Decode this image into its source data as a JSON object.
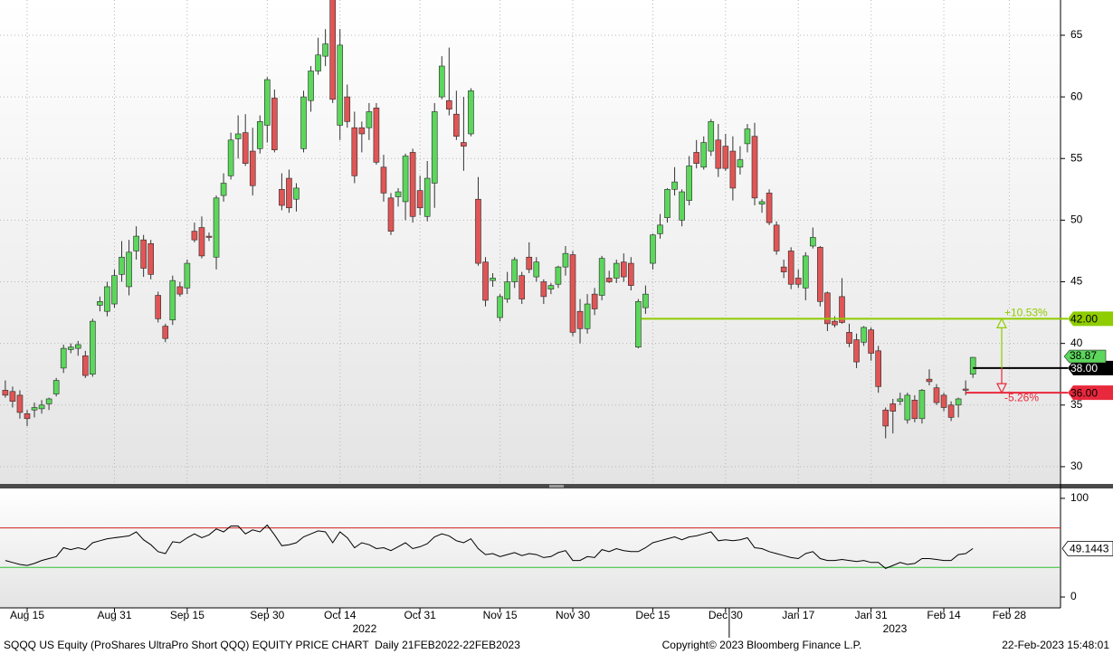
{
  "chart_data": [
    {
      "type": "candlestick",
      "categories": [
        null,
        null,
        null,
        "Aug 15",
        null,
        null,
        null,
        null,
        null,
        null,
        null,
        null,
        null,
        null,
        null,
        "Aug 31",
        null,
        null,
        null,
        null,
        null,
        null,
        null,
        null,
        null,
        "Sep 15",
        null,
        null,
        null,
        null,
        null,
        null,
        null,
        null,
        null,
        null,
        "Sep 30",
        null,
        null,
        null,
        null,
        null,
        null,
        null,
        null,
        null,
        "Oct 14",
        null,
        null,
        null,
        null,
        null,
        null,
        null,
        null,
        null,
        null,
        "Oct 31",
        null,
        null,
        null,
        null,
        null,
        null,
        null,
        null,
        null,
        null,
        "Nov 15",
        null,
        null,
        null,
        null,
        null,
        null,
        null,
        null,
        null,
        "Nov 30",
        null,
        null,
        null,
        null,
        null,
        null,
        null,
        null,
        null,
        null,
        "Dec 15",
        null,
        null,
        null,
        null,
        null,
        null,
        null,
        null,
        null,
        "Dec 30",
        null,
        null,
        null,
        null,
        null,
        null,
        null,
        null,
        null,
        "Jan 17",
        null,
        null,
        null,
        null,
        null,
        null,
        null,
        null,
        null,
        "Jan 31",
        null,
        null,
        null,
        null,
        null,
        null,
        null,
        null,
        null,
        "Feb 14",
        null,
        null,
        null,
        null,
        null,
        null,
        null,
        null,
        "Feb 28"
      ],
      "category_years": [
        "2022",
        null,
        null,
        null,
        null,
        null,
        null,
        null,
        null,
        null,
        null,
        null,
        null,
        null,
        null,
        null,
        null,
        null,
        null,
        null,
        null,
        null,
        null,
        null,
        null,
        null,
        null,
        null,
        null,
        null,
        null,
        null,
        null,
        null,
        null,
        null,
        null,
        null,
        null,
        null,
        null,
        null,
        null,
        null,
        null,
        null,
        null,
        null,
        null,
        null,
        null,
        null,
        null,
        null,
        null,
        null,
        null,
        null,
        null,
        null,
        null,
        null,
        null,
        null,
        null,
        null,
        null,
        null,
        null,
        null,
        null,
        null,
        null,
        null,
        null,
        null,
        null,
        null,
        null,
        null,
        null,
        null,
        null,
        null,
        null,
        null,
        null,
        null,
        null,
        null,
        null,
        null,
        null,
        null,
        null,
        null,
        null,
        null,
        null,
        null,
        "2023",
        null,
        null,
        null,
        null,
        null,
        null,
        null,
        null,
        null,
        null,
        null,
        null,
        null,
        null,
        null,
        null,
        null,
        null,
        null,
        null,
        null,
        null,
        null,
        null,
        null,
        null,
        null,
        null,
        null,
        null,
        null,
        null,
        null,
        null,
        null,
        null,
        null,
        null
      ],
      "open": [
        36.2,
        36.1,
        35.8,
        34.3,
        34.6,
        34.7,
        35.1,
        35.9,
        38.0,
        39.5,
        39.6,
        39.0,
        37.5,
        43.1,
        42.6,
        43.2,
        45.6,
        44.6,
        47.5,
        48.4,
        48.1,
        43.9,
        41.4,
        41.9,
        44.6,
        44.5,
        49.1,
        49.4,
        48.7,
        47.0,
        52.0,
        53.6,
        56.6,
        57.1,
        55.6,
        55.8,
        57.7,
        59.9,
        52.5,
        53.4,
        51.7,
        55.8,
        59.7,
        62.1,
        63.3,
        67.9,
        57.7,
        60.0,
        57.5,
        57.5,
        57.5,
        59.1,
        54.3,
        51.8,
        51.9,
        51.5,
        55.5,
        52.4,
        50.3,
        53.0,
        60.0,
        59.7,
        58.6,
        56.3,
        57.0,
        51.7,
        46.6,
        45.1,
        42.1,
        43.6,
        45.0,
        45.5,
        47.0,
        45.4,
        45.0,
        44.4,
        44.8,
        46.2,
        47.2,
        42.6,
        41.2,
        44.0,
        43.9,
        45.3,
        45.3,
        46.6,
        46.5,
        39.7,
        42.9,
        46.5,
        48.9,
        50.2,
        52.5,
        50.0,
        51.6,
        55.5,
        54.3,
        55.6,
        56.5,
        56.0,
        55.6,
        54.3,
        56.2,
        56.8,
        51.3,
        52.2,
        49.6,
        46.2,
        47.5,
        45.3,
        44.5,
        47.9,
        47.8,
        44.1,
        41.8,
        43.8,
        40.9,
        40.3,
        40.1,
        41.1,
        39.4,
        34.6,
        35.1,
        35.3,
        33.8,
        35.4,
        33.9,
        37.1,
        36.4,
        35.8,
        35.0,
        35.0,
        36.3,
        37.5,
        null,
        null,
        null,
        null,
        null
      ],
      "high": [
        37.0,
        36.5,
        36.2,
        34.6,
        35.2,
        35.4,
        35.6,
        37.2,
        39.9,
        40.0,
        40.2,
        39.4,
        42.0,
        43.8,
        45.0,
        46.0,
        48.3,
        48.4,
        49.5,
        48.8,
        48.4,
        44.2,
        41.6,
        45.5,
        45.0,
        46.8,
        49.8,
        50.3,
        49.0,
        52.0,
        53.8,
        57.1,
        58.5,
        58.6,
        57.5,
        58.5,
        61.6,
        60.6,
        53.8,
        54.1,
        53.0,
        60.5,
        62.5,
        64.8,
        65.5,
        68.0,
        65.5,
        61.0,
        58.8,
        58.0,
        59.5,
        59.5,
        55.3,
        52.2,
        52.6,
        55.4,
        55.8,
        53.6,
        54.8,
        59.5,
        63.3,
        64.0,
        60.5,
        60.0,
        60.7,
        53.5,
        47.0,
        45.7,
        44.0,
        45.8,
        47.0,
        45.8,
        48.2,
        47.0,
        45.2,
        44.9,
        46.3,
        47.9,
        47.5,
        43.6,
        44.0,
        44.5,
        47.1,
        45.9,
        46.8,
        47.3,
        47.0,
        43.6,
        44.7,
        48.9,
        50.5,
        52.6,
        54.3,
        52.5,
        55.2,
        56.5,
        56.8,
        58.2,
        57.8,
        57.0,
        56.8,
        56.0,
        57.8,
        57.9,
        51.7,
        52.5,
        49.9,
        46.8,
        47.8,
        46.0,
        47.4,
        49.4,
        47.9,
        44.2,
        42.2,
        45.3,
        41.6,
        40.8,
        41.4,
        41.3,
        39.8,
        34.8,
        35.5,
        36.0,
        36.0,
        35.8,
        36.3,
        37.9,
        36.7,
        36.0,
        35.3,
        35.6,
        37.0,
        38.9,
        null,
        null,
        null,
        null,
        null
      ],
      "low": [
        35.6,
        34.8,
        33.9,
        33.3,
        34.0,
        34.3,
        34.6,
        35.7,
        37.6,
        39.2,
        39.0,
        37.2,
        37.3,
        42.6,
        42.2,
        42.9,
        45.0,
        43.9,
        46.8,
        45.4,
        45.2,
        41.7,
        40.1,
        41.5,
        43.8,
        44.0,
        48.2,
        46.9,
        48.3,
        46.0,
        51.5,
        53.3,
        55.0,
        54.4,
        52.0,
        55.4,
        56.3,
        55.5,
        50.8,
        50.6,
        50.7,
        55.5,
        58.8,
        61.8,
        62.5,
        59.5,
        56.5,
        57.5,
        53.0,
        55.5,
        56.5,
        54.5,
        51.5,
        48.8,
        51.1,
        50.0,
        49.8,
        50.4,
        49.9,
        51.0,
        59.8,
        58.5,
        56.5,
        54.0,
        56.8,
        46.3,
        43.0,
        44.6,
        41.8,
        43.3,
        44.5,
        43.2,
        45.7,
        45.0,
        43.2,
        44.0,
        44.5,
        45.5,
        40.6,
        40.0,
        40.8,
        42.3,
        43.5,
        44.9,
        44.9,
        45.0,
        44.3,
        39.6,
        42.4,
        46.0,
        48.5,
        49.8,
        52.0,
        49.5,
        51.2,
        54.2,
        54.1,
        55.2,
        53.5,
        54.0,
        51.6,
        53.7,
        55.5,
        51.2,
        50.6,
        49.6,
        47.2,
        45.3,
        44.4,
        44.5,
        43.5,
        47.7,
        43.0,
        41.0,
        41.3,
        41.6,
        39.7,
        38.0,
        39.8,
        38.6,
        36.0,
        32.3,
        32.7,
        35.0,
        33.5,
        33.6,
        33.5,
        36.6,
        35.0,
        34.5,
        33.7,
        34.0,
        35.8,
        37.2,
        null,
        null,
        null,
        null,
        null
      ],
      "close": [
        35.8,
        35.3,
        34.4,
        33.9,
        34.8,
        35.0,
        35.5,
        37.0,
        39.6,
        39.7,
        39.9,
        37.4,
        41.8,
        43.4,
        44.6,
        45.5,
        47.0,
        47.4,
        48.7,
        46.1,
        45.6,
        42.0,
        40.4,
        45.1,
        44.0,
        46.5,
        48.4,
        47.1,
        48.6,
        51.8,
        53.0,
        56.5,
        57.0,
        54.6,
        52.8,
        58.0,
        61.4,
        55.7,
        51.2,
        51.0,
        52.6,
        60.0,
        62.1,
        63.4,
        64.3,
        59.8,
        64.2,
        58.0,
        53.6,
        57.0,
        58.8,
        54.7,
        52.2,
        49.1,
        52.3,
        55.2,
        50.3,
        51.0,
        53.4,
        58.8,
        62.5,
        59.0,
        56.8,
        56.0,
        60.5,
        46.5,
        43.5,
        45.3,
        43.8,
        45.0,
        46.8,
        43.6,
        46.0,
        46.6,
        43.8,
        44.7,
        46.2,
        47.3,
        40.9,
        41.2,
        43.2,
        42.8,
        46.9,
        45.0,
        46.5,
        45.4,
        44.7,
        43.4,
        44.0,
        48.8,
        49.6,
        52.5,
        53.1,
        52.3,
        54.4,
        54.6,
        56.3,
        58.0,
        54.2,
        54.2,
        52.6,
        54.9,
        57.4,
        51.8,
        51.5,
        49.8,
        47.5,
        45.8,
        44.8,
        44.8,
        47.1,
        48.6,
        43.4,
        41.6,
        41.5,
        41.7,
        40.0,
        38.5,
        41.3,
        39.2,
        36.5,
        33.3,
        34.5,
        35.5,
        35.8,
        33.9,
        36.2,
        36.9,
        35.2,
        34.8,
        34.0,
        35.5,
        36.2,
        38.87,
        null,
        null,
        null,
        null,
        null
      ],
      "up_color": "#5cd65c",
      "down_color": "#e05555",
      "ylim": [
        28.6,
        67.86
      ],
      "yticks": [
        30,
        35,
        40,
        45,
        50,
        55,
        60,
        65
      ],
      "grid": true,
      "levels": [
        {
          "value": 42,
          "label": "42.00",
          "color": "#8fcc00"
        },
        {
          "value": 38,
          "label": "38.00",
          "color": "#000000"
        },
        {
          "value": 36,
          "label": "36.00",
          "color": "#e8283c"
        }
      ],
      "changes": [
        {
          "value": 10.53,
          "label": "+10.53%",
          "color": "#8fcc00"
        },
        {
          "value": -5.26,
          "label": "-5.26%",
          "color": "#e8283c"
        }
      ]
    },
    {
      "type": "line",
      "color": "#000000",
      "values": [
        37,
        35,
        33,
        32,
        34,
        37,
        39,
        41,
        50,
        48,
        50,
        48,
        55,
        57,
        59,
        60,
        61,
        62,
        66,
        58,
        53,
        46,
        44,
        56,
        55,
        60,
        64,
        60,
        63,
        69,
        66,
        72,
        72,
        64,
        68,
        66,
        73,
        63,
        52,
        53,
        55,
        61,
        64,
        67,
        66,
        55,
        66,
        60,
        50,
        55,
        53,
        49,
        50,
        47,
        51,
        55,
        49,
        51,
        54,
        61,
        64,
        62,
        57,
        55,
        59,
        49,
        43,
        44,
        41,
        43,
        45,
        42,
        44,
        43,
        40,
        41,
        45,
        47,
        37,
        37,
        41,
        40,
        48,
        46,
        49,
        47,
        46,
        46,
        50,
        55,
        57,
        59,
        61,
        58,
        61,
        62,
        64,
        66,
        57,
        58,
        57,
        58,
        60,
        50,
        49,
        46,
        44,
        42,
        40,
        39,
        44,
        46,
        39,
        37,
        37,
        38,
        37,
        36,
        37,
        35,
        35,
        29,
        32,
        35,
        33,
        34,
        39,
        39,
        38,
        37,
        37,
        43,
        44,
        49.1443,
        null,
        null,
        null,
        null,
        null
      ],
      "ylim": [
        -11,
        110
      ],
      "yticks": [
        0,
        100
      ],
      "bands": [
        {
          "value": 70,
          "color": "#d02020"
        },
        {
          "value": 30,
          "color": "#30c030"
        }
      ]
    }
  ],
  "footer": {
    "left": "SQQQ US Equity (ProShares UltraPro Short QQQ) EQUITY PRICE CHART  Daily 21FEB2022-22FEB2023",
    "center": "Copyright© 2023 Bloomberg Finance L.P.",
    "right": "22-Feb-2023 15:48:01"
  }
}
